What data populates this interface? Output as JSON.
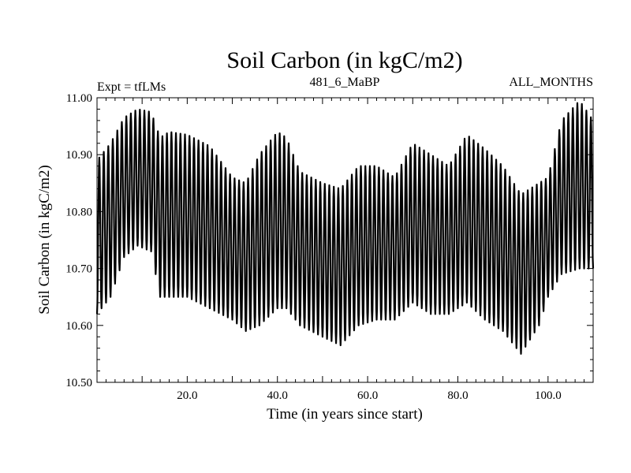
{
  "chart_data": {
    "type": "line",
    "title": "Soil Carbon (in kgC/m2)",
    "subtitle_left": "Expt = tfLMs",
    "subtitle_center": "481_6_MaBP",
    "subtitle_right": "ALL_MONTHS",
    "xlabel": "Time (in years since start)",
    "ylabel": "Soil Carbon (in kgC/m2)",
    "xlim": [
      0,
      110
    ],
    "ylim": [
      10.5,
      11.0
    ],
    "x_ticks": [
      20,
      40,
      60,
      80,
      100
    ],
    "x_tick_labels": [
      "20.0",
      "40.0",
      "60.0",
      "80.0",
      "100.0"
    ],
    "y_ticks": [
      10.5,
      10.6,
      10.7,
      10.8,
      10.9,
      11.0
    ],
    "y_tick_labels": [
      "10.50",
      "10.60",
      "10.70",
      "10.80",
      "10.90",
      "11.00"
    ],
    "grid": false,
    "series": [
      {
        "name": "Soil Carbon",
        "color": "#000000",
        "samples_per_year": 12,
        "envelope": {
          "years": [
            0,
            3,
            6,
            9,
            12,
            14,
            16,
            20,
            25,
            30,
            33,
            36,
            40,
            42,
            45,
            50,
            54,
            58,
            62,
            66,
            70,
            74,
            78,
            82,
            86,
            90,
            94,
            98,
            100,
            103,
            107,
            110
          ],
          "annual_max": [
            10.89,
            10.92,
            10.965,
            10.98,
            10.975,
            10.93,
            10.94,
            10.935,
            10.915,
            10.86,
            10.85,
            10.9,
            10.94,
            10.93,
            10.87,
            10.85,
            10.84,
            10.88,
            10.88,
            10.86,
            10.92,
            10.9,
            10.88,
            10.935,
            10.91,
            10.88,
            10.83,
            10.85,
            10.86,
            10.96,
            10.995,
            10.96
          ],
          "annual_min": [
            10.62,
            10.65,
            10.72,
            10.74,
            10.73,
            10.65,
            10.65,
            10.65,
            10.63,
            10.61,
            10.59,
            10.6,
            10.63,
            10.63,
            10.6,
            10.58,
            10.565,
            10.6,
            10.61,
            10.61,
            10.64,
            10.62,
            10.62,
            10.64,
            10.61,
            10.59,
            10.55,
            10.6,
            10.65,
            10.69,
            10.7,
            10.7
          ]
        }
      }
    ]
  }
}
